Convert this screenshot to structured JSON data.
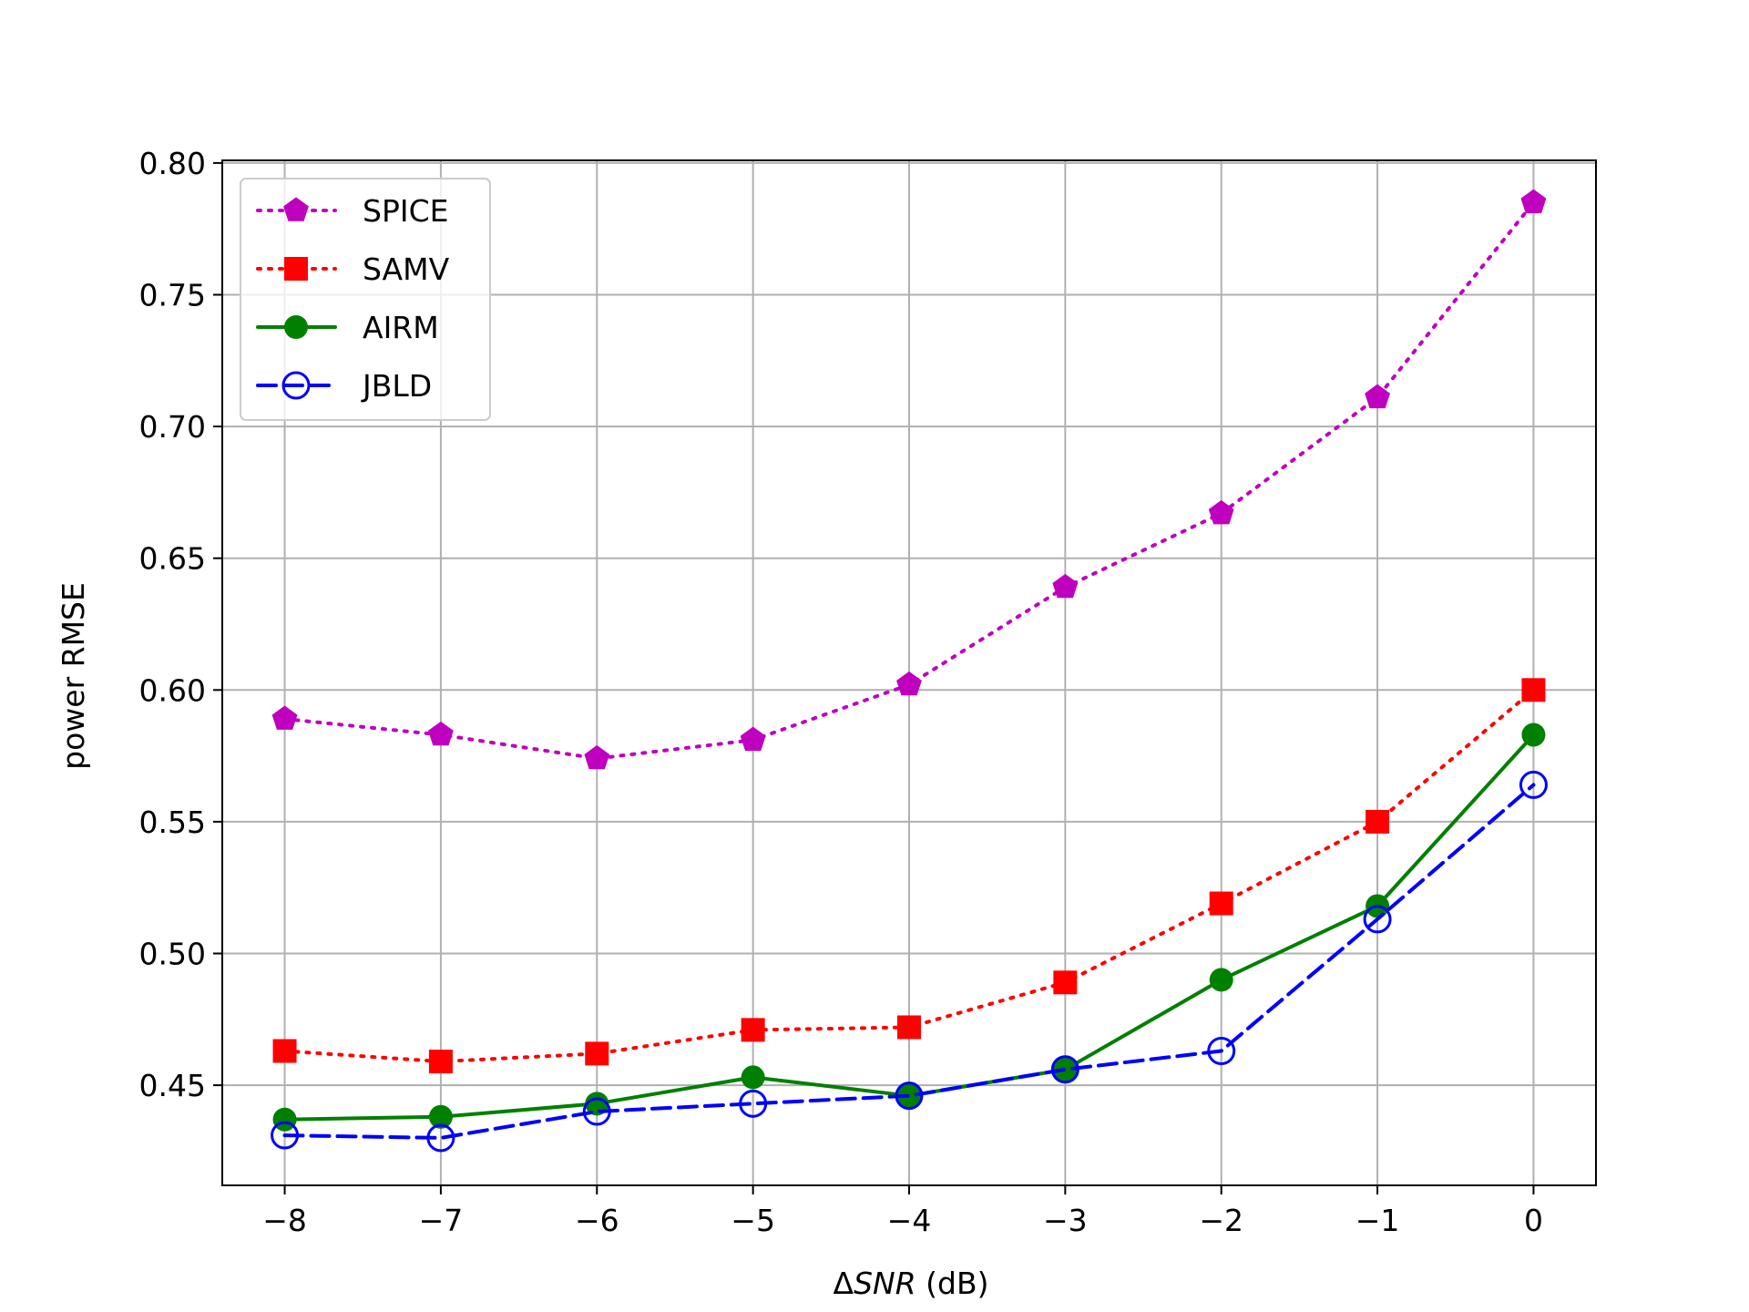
{
  "chart_data": {
    "type": "line",
    "title": "",
    "xlabel": "ΔSNR (dB)",
    "xlabel_prefix": "Δ",
    "xlabel_italic": "SNR",
    "xlabel_suffix": " (dB)",
    "ylabel": "power RMSE",
    "x": [
      -8,
      -7,
      -6,
      -5,
      -4,
      -3,
      -2,
      -1,
      0
    ],
    "x_tick_labels": [
      "−8",
      "−7",
      "−6",
      "−5",
      "−4",
      "−3",
      "−2",
      "−1",
      "0"
    ],
    "y_ticks": [
      0.45,
      0.5,
      0.55,
      0.6,
      0.65,
      0.7,
      0.75,
      0.8
    ],
    "y_tick_labels": [
      "0.45",
      "0.50",
      "0.55",
      "0.60",
      "0.65",
      "0.70",
      "0.75",
      "0.80"
    ],
    "xlim": [
      -8.4,
      0.4
    ],
    "ylim": [
      0.412,
      0.801
    ],
    "grid": true,
    "legend_position": "top-left",
    "series": [
      {
        "name": "SPICE",
        "color": "#bf00bf",
        "line_style": "dotted",
        "marker": "pentagon",
        "values": [
          0.589,
          0.583,
          0.574,
          0.581,
          0.602,
          0.639,
          0.667,
          0.711,
          0.785
        ]
      },
      {
        "name": "SAMV",
        "color": "#ff0000",
        "line_style": "dotted",
        "marker": "square",
        "values": [
          0.463,
          0.459,
          0.462,
          0.471,
          0.472,
          0.489,
          0.519,
          0.55,
          0.6
        ]
      },
      {
        "name": "AIRM",
        "color": "#008000",
        "line_style": "solid",
        "marker": "filled-circle",
        "values": [
          0.437,
          0.438,
          0.443,
          0.453,
          0.446,
          0.456,
          0.49,
          0.518,
          0.583
        ]
      },
      {
        "name": "JBLD",
        "color": "#0000ff",
        "line_style": "dashed",
        "marker": "open-circle",
        "values": [
          0.431,
          0.43,
          0.44,
          0.443,
          0.446,
          0.456,
          0.463,
          0.513,
          0.564
        ]
      }
    ]
  }
}
